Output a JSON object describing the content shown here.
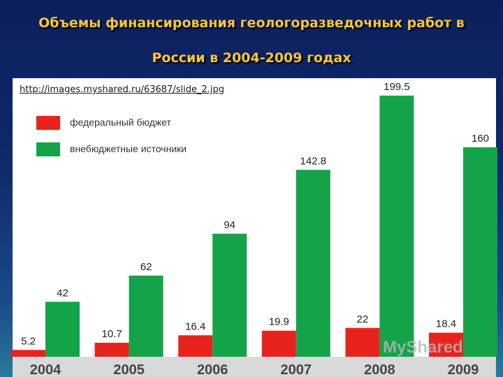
{
  "title_line1": "Объемы финансирования геологоразведочных работ в",
  "title_line2": "России в 2004-2009 годах",
  "source_url": "http://images.myshared.ru/63687/slide_2.jpg",
  "watermark": "MyShared",
  "chart_data": {
    "type": "bar",
    "categories": [
      "2004",
      "2005",
      "2006",
      "2007",
      "2008",
      "2009"
    ],
    "series": [
      {
        "name": "федеральный бюджет",
        "color": "#e8231e",
        "values": [
          5.2,
          10.7,
          16.4,
          19.9,
          22,
          18.4
        ],
        "labels": [
          "5.2",
          "10.7",
          "16.4",
          "19.9",
          "22",
          "18.4"
        ]
      },
      {
        "name": "внебюджетные источники",
        "color": "#14a349",
        "values": [
          42,
          62,
          94,
          142.8,
          199.5,
          160
        ],
        "labels": [
          "42",
          "62",
          "94",
          "142.8",
          "199.5",
          "160"
        ]
      }
    ],
    "ylim": [
      0,
      200
    ],
    "grid": false,
    "legend": "top-left"
  }
}
